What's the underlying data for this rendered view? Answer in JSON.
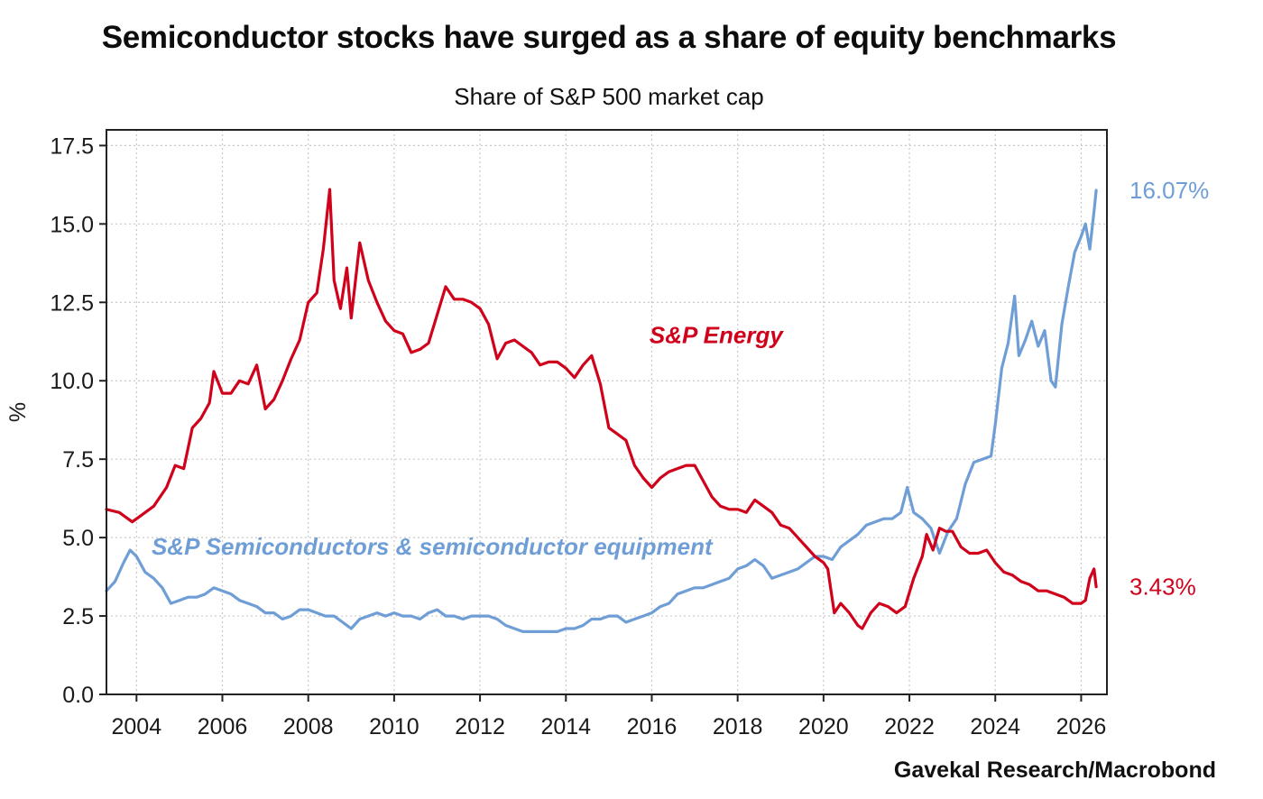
{
  "title": "Semiconductor stocks have surged as a share of equity benchmarks",
  "subtitle": "Share of S&P 500 market cap",
  "source": "Gavekal Research/Macrobond",
  "colors": {
    "energy": "#d0021b",
    "semis": "#6f9ed6",
    "grid": "#c8c8c8",
    "frame": "#222222"
  },
  "chart_data": {
    "type": "line",
    "title": "Semiconductor stocks have surged as a share of equity benchmarks",
    "subtitle": "Share of S&P 500 market cap",
    "xlabel": "",
    "ylabel": "%",
    "xlim": [
      2003.3,
      2026.6
    ],
    "ylim": [
      0,
      18.0
    ],
    "x_ticks": [
      2004,
      2006,
      2008,
      2010,
      2012,
      2014,
      2016,
      2018,
      2020,
      2022,
      2024,
      2026
    ],
    "x_tick_labels": [
      "2004",
      "2006",
      "2008",
      "2010",
      "2012",
      "2014",
      "2016",
      "2018",
      "2020",
      "2022",
      "2024",
      "2026"
    ],
    "y_ticks": [
      0,
      2.5,
      5,
      7.5,
      10,
      12.5,
      15,
      17.5
    ],
    "y_tick_labels": [
      "0.0",
      "2.5",
      "5.0",
      "7.5",
      "10.0",
      "12.5",
      "15.0",
      "17.5"
    ],
    "grid": true,
    "series": [
      {
        "name": "S&P Energy",
        "color": "#d0021b",
        "end_label": "3.43%",
        "points": [
          [
            2003.3,
            5.9
          ],
          [
            2003.6,
            5.8
          ],
          [
            2003.9,
            5.5
          ],
          [
            2004.1,
            5.7
          ],
          [
            2004.4,
            6.0
          ],
          [
            2004.7,
            6.6
          ],
          [
            2004.9,
            7.3
          ],
          [
            2005.1,
            7.2
          ],
          [
            2005.3,
            8.5
          ],
          [
            2005.5,
            8.8
          ],
          [
            2005.7,
            9.3
          ],
          [
            2005.8,
            10.3
          ],
          [
            2006.0,
            9.6
          ],
          [
            2006.2,
            9.6
          ],
          [
            2006.4,
            10.0
          ],
          [
            2006.6,
            9.9
          ],
          [
            2006.8,
            10.5
          ],
          [
            2007.0,
            9.1
          ],
          [
            2007.2,
            9.4
          ],
          [
            2007.4,
            10.0
          ],
          [
            2007.6,
            10.7
          ],
          [
            2007.8,
            11.3
          ],
          [
            2008.0,
            12.5
          ],
          [
            2008.2,
            12.8
          ],
          [
            2008.35,
            14.2
          ],
          [
            2008.5,
            16.1
          ],
          [
            2008.6,
            13.2
          ],
          [
            2008.75,
            12.3
          ],
          [
            2008.9,
            13.6
          ],
          [
            2009.0,
            12.0
          ],
          [
            2009.2,
            14.4
          ],
          [
            2009.4,
            13.2
          ],
          [
            2009.6,
            12.5
          ],
          [
            2009.8,
            11.9
          ],
          [
            2010.0,
            11.6
          ],
          [
            2010.2,
            11.5
          ],
          [
            2010.4,
            10.9
          ],
          [
            2010.6,
            11.0
          ],
          [
            2010.8,
            11.2
          ],
          [
            2011.0,
            12.1
          ],
          [
            2011.2,
            13.0
          ],
          [
            2011.4,
            12.6
          ],
          [
            2011.6,
            12.6
          ],
          [
            2011.8,
            12.5
          ],
          [
            2012.0,
            12.3
          ],
          [
            2012.2,
            11.8
          ],
          [
            2012.4,
            10.7
          ],
          [
            2012.6,
            11.2
          ],
          [
            2012.8,
            11.3
          ],
          [
            2013.0,
            11.1
          ],
          [
            2013.2,
            10.9
          ],
          [
            2013.4,
            10.5
          ],
          [
            2013.6,
            10.6
          ],
          [
            2013.8,
            10.6
          ],
          [
            2014.0,
            10.4
          ],
          [
            2014.2,
            10.1
          ],
          [
            2014.4,
            10.5
          ],
          [
            2014.6,
            10.8
          ],
          [
            2014.8,
            9.9
          ],
          [
            2015.0,
            8.5
          ],
          [
            2015.2,
            8.3
          ],
          [
            2015.4,
            8.1
          ],
          [
            2015.6,
            7.3
          ],
          [
            2015.8,
            6.9
          ],
          [
            2016.0,
            6.6
          ],
          [
            2016.2,
            6.9
          ],
          [
            2016.4,
            7.1
          ],
          [
            2016.6,
            7.2
          ],
          [
            2016.8,
            7.3
          ],
          [
            2017.0,
            7.3
          ],
          [
            2017.2,
            6.8
          ],
          [
            2017.4,
            6.3
          ],
          [
            2017.6,
            6.0
          ],
          [
            2017.8,
            5.9
          ],
          [
            2018.0,
            5.9
          ],
          [
            2018.2,
            5.8
          ],
          [
            2018.4,
            6.2
          ],
          [
            2018.6,
            6.0
          ],
          [
            2018.8,
            5.8
          ],
          [
            2019.0,
            5.4
          ],
          [
            2019.2,
            5.3
          ],
          [
            2019.4,
            5.0
          ],
          [
            2019.6,
            4.7
          ],
          [
            2019.8,
            4.4
          ],
          [
            2020.0,
            4.2
          ],
          [
            2020.1,
            4.0
          ],
          [
            2020.25,
            2.6
          ],
          [
            2020.4,
            2.9
          ],
          [
            2020.6,
            2.6
          ],
          [
            2020.8,
            2.2
          ],
          [
            2020.9,
            2.1
          ],
          [
            2021.1,
            2.6
          ],
          [
            2021.3,
            2.9
          ],
          [
            2021.5,
            2.8
          ],
          [
            2021.7,
            2.6
          ],
          [
            2021.9,
            2.8
          ],
          [
            2022.1,
            3.7
          ],
          [
            2022.3,
            4.4
          ],
          [
            2022.4,
            5.1
          ],
          [
            2022.55,
            4.6
          ],
          [
            2022.7,
            5.3
          ],
          [
            2022.85,
            5.2
          ],
          [
            2023.0,
            5.2
          ],
          [
            2023.2,
            4.7
          ],
          [
            2023.4,
            4.5
          ],
          [
            2023.6,
            4.5
          ],
          [
            2023.8,
            4.6
          ],
          [
            2024.0,
            4.2
          ],
          [
            2024.2,
            3.9
          ],
          [
            2024.4,
            3.8
          ],
          [
            2024.6,
            3.6
          ],
          [
            2024.8,
            3.5
          ],
          [
            2025.0,
            3.3
          ],
          [
            2025.2,
            3.3
          ],
          [
            2025.4,
            3.2
          ],
          [
            2025.6,
            3.1
          ],
          [
            2025.8,
            2.9
          ],
          [
            2026.0,
            2.9
          ],
          [
            2026.1,
            3.0
          ],
          [
            2026.2,
            3.7
          ],
          [
            2026.3,
            4.0
          ],
          [
            2026.35,
            3.43
          ]
        ]
      },
      {
        "name": "S&P Semiconductors & semiconductor equipment",
        "color": "#6f9ed6",
        "end_label": "16.07%",
        "points": [
          [
            2003.3,
            3.3
          ],
          [
            2003.5,
            3.6
          ],
          [
            2003.7,
            4.2
          ],
          [
            2003.85,
            4.6
          ],
          [
            2004.0,
            4.4
          ],
          [
            2004.2,
            3.9
          ],
          [
            2004.4,
            3.7
          ],
          [
            2004.6,
            3.4
          ],
          [
            2004.8,
            2.9
          ],
          [
            2005.0,
            3.0
          ],
          [
            2005.2,
            3.1
          ],
          [
            2005.4,
            3.1
          ],
          [
            2005.6,
            3.2
          ],
          [
            2005.8,
            3.4
          ],
          [
            2006.0,
            3.3
          ],
          [
            2006.2,
            3.2
          ],
          [
            2006.4,
            3.0
          ],
          [
            2006.6,
            2.9
          ],
          [
            2006.8,
            2.8
          ],
          [
            2007.0,
            2.6
          ],
          [
            2007.2,
            2.6
          ],
          [
            2007.4,
            2.4
          ],
          [
            2007.6,
            2.5
          ],
          [
            2007.8,
            2.7
          ],
          [
            2008.0,
            2.7
          ],
          [
            2008.2,
            2.6
          ],
          [
            2008.4,
            2.5
          ],
          [
            2008.6,
            2.5
          ],
          [
            2008.8,
            2.3
          ],
          [
            2009.0,
            2.1
          ],
          [
            2009.2,
            2.4
          ],
          [
            2009.4,
            2.5
          ],
          [
            2009.6,
            2.6
          ],
          [
            2009.8,
            2.5
          ],
          [
            2010.0,
            2.6
          ],
          [
            2010.2,
            2.5
          ],
          [
            2010.4,
            2.5
          ],
          [
            2010.6,
            2.4
          ],
          [
            2010.8,
            2.6
          ],
          [
            2011.0,
            2.7
          ],
          [
            2011.2,
            2.5
          ],
          [
            2011.4,
            2.5
          ],
          [
            2011.6,
            2.4
          ],
          [
            2011.8,
            2.5
          ],
          [
            2012.0,
            2.5
          ],
          [
            2012.2,
            2.5
          ],
          [
            2012.4,
            2.4
          ],
          [
            2012.6,
            2.2
          ],
          [
            2012.8,
            2.1
          ],
          [
            2013.0,
            2.0
          ],
          [
            2013.2,
            2.0
          ],
          [
            2013.4,
            2.0
          ],
          [
            2013.6,
            2.0
          ],
          [
            2013.8,
            2.0
          ],
          [
            2014.0,
            2.1
          ],
          [
            2014.2,
            2.1
          ],
          [
            2014.4,
            2.2
          ],
          [
            2014.6,
            2.4
          ],
          [
            2014.8,
            2.4
          ],
          [
            2015.0,
            2.5
          ],
          [
            2015.2,
            2.5
          ],
          [
            2015.4,
            2.3
          ],
          [
            2015.6,
            2.4
          ],
          [
            2015.8,
            2.5
          ],
          [
            2016.0,
            2.6
          ],
          [
            2016.2,
            2.8
          ],
          [
            2016.4,
            2.9
          ],
          [
            2016.6,
            3.2
          ],
          [
            2016.8,
            3.3
          ],
          [
            2017.0,
            3.4
          ],
          [
            2017.2,
            3.4
          ],
          [
            2017.4,
            3.5
          ],
          [
            2017.6,
            3.6
          ],
          [
            2017.8,
            3.7
          ],
          [
            2018.0,
            4.0
          ],
          [
            2018.2,
            4.1
          ],
          [
            2018.4,
            4.3
          ],
          [
            2018.6,
            4.1
          ],
          [
            2018.8,
            3.7
          ],
          [
            2019.0,
            3.8
          ],
          [
            2019.2,
            3.9
          ],
          [
            2019.4,
            4.0
          ],
          [
            2019.6,
            4.2
          ],
          [
            2019.8,
            4.4
          ],
          [
            2020.0,
            4.4
          ],
          [
            2020.2,
            4.3
          ],
          [
            2020.4,
            4.7
          ],
          [
            2020.6,
            4.9
          ],
          [
            2020.8,
            5.1
          ],
          [
            2021.0,
            5.4
          ],
          [
            2021.2,
            5.5
          ],
          [
            2021.4,
            5.6
          ],
          [
            2021.6,
            5.6
          ],
          [
            2021.8,
            5.8
          ],
          [
            2021.95,
            6.6
          ],
          [
            2022.1,
            5.8
          ],
          [
            2022.3,
            5.6
          ],
          [
            2022.5,
            5.3
          ],
          [
            2022.7,
            4.5
          ],
          [
            2022.9,
            5.2
          ],
          [
            2023.1,
            5.6
          ],
          [
            2023.3,
            6.7
          ],
          [
            2023.5,
            7.4
          ],
          [
            2023.7,
            7.5
          ],
          [
            2023.9,
            7.6
          ],
          [
            2024.0,
            8.6
          ],
          [
            2024.15,
            10.4
          ],
          [
            2024.3,
            11.2
          ],
          [
            2024.45,
            12.7
          ],
          [
            2024.55,
            10.8
          ],
          [
            2024.7,
            11.3
          ],
          [
            2024.85,
            11.9
          ],
          [
            2025.0,
            11.1
          ],
          [
            2025.15,
            11.6
          ],
          [
            2025.3,
            10.0
          ],
          [
            2025.4,
            9.8
          ],
          [
            2025.55,
            11.8
          ],
          [
            2025.7,
            13.0
          ],
          [
            2025.85,
            14.1
          ],
          [
            2026.0,
            14.6
          ],
          [
            2026.1,
            15.0
          ],
          [
            2026.2,
            14.2
          ],
          [
            2026.3,
            15.4
          ],
          [
            2026.35,
            16.07
          ]
        ]
      }
    ],
    "annotations": [
      {
        "text": "S&P Energy",
        "series": "S&P Energy"
      },
      {
        "text": "S&P Semiconductors & semiconductor equipment",
        "series": "S&P Semiconductors & semiconductor equipment"
      }
    ]
  }
}
